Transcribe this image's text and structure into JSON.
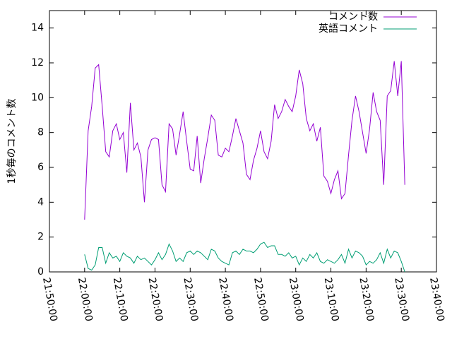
{
  "chart_data": {
    "type": "line",
    "ylabel": "1秒毎のコメント数",
    "x": [
      "22:00:00",
      "22:01:00",
      "22:02:00",
      "22:03:00",
      "22:04:00",
      "22:05:00",
      "22:06:00",
      "22:07:00",
      "22:08:00",
      "22:09:00",
      "22:10:00",
      "22:11:00",
      "22:12:00",
      "22:13:00",
      "22:14:00",
      "22:15:00",
      "22:16:00",
      "22:17:00",
      "22:18:00",
      "22:19:00",
      "22:20:00",
      "22:21:00",
      "22:22:00",
      "22:23:00",
      "22:24:00",
      "22:25:00",
      "22:26:00",
      "22:27:00",
      "22:28:00",
      "22:29:00",
      "22:30:00",
      "22:31:00",
      "22:32:00",
      "22:33:00",
      "22:34:00",
      "22:35:00",
      "22:36:00",
      "22:37:00",
      "22:38:00",
      "22:39:00",
      "22:40:00",
      "22:41:00",
      "22:42:00",
      "22:43:00",
      "22:44:00",
      "22:45:00",
      "22:46:00",
      "22:47:00",
      "22:48:00",
      "22:49:00",
      "22:50:00",
      "22:51:00",
      "22:52:00",
      "22:53:00",
      "22:54:00",
      "22:55:00",
      "22:56:00",
      "22:57:00",
      "22:58:00",
      "22:59:00",
      "23:00:00",
      "23:01:00",
      "23:02:00",
      "23:03:00",
      "23:04:00",
      "23:05:00",
      "23:06:00",
      "23:07:00",
      "23:08:00",
      "23:09:00",
      "23:10:00",
      "23:11:00",
      "23:12:00",
      "23:13:00",
      "23:14:00",
      "23:15:00",
      "23:16:00",
      "23:17:00",
      "23:18:00",
      "23:19:00",
      "23:20:00",
      "23:21:00",
      "23:22:00",
      "23:23:00",
      "23:24:00",
      "23:25:00",
      "23:26:00",
      "23:27:00",
      "23:28:00",
      "23:29:00",
      "23:30:00",
      "23:31:00"
    ],
    "series": [
      {
        "name": "コメント数",
        "color": "#9400d3",
        "values": [
          3.0,
          8.1,
          9.5,
          11.7,
          11.9,
          9.5,
          6.9,
          6.6,
          8.1,
          8.5,
          7.6,
          8.0,
          5.7,
          9.7,
          7.0,
          7.4,
          6.6,
          4.0,
          7.0,
          7.6,
          7.7,
          7.6,
          5.0,
          4.6,
          8.5,
          8.2,
          6.7,
          7.9,
          9.2,
          7.5,
          5.9,
          5.8,
          7.8,
          5.1,
          6.5,
          7.7,
          9.0,
          8.7,
          6.7,
          6.6,
          7.1,
          6.9,
          7.8,
          8.8,
          8.1,
          7.4,
          5.6,
          5.3,
          6.4,
          7.1,
          8.1,
          6.9,
          6.5,
          7.5,
          9.6,
          8.8,
          9.2,
          9.9,
          9.5,
          9.2,
          10.1,
          11.6,
          10.8,
          8.8,
          8.1,
          8.5,
          7.5,
          8.3,
          5.5,
          5.2,
          4.5,
          5.3,
          5.8,
          4.2,
          4.5,
          6.7,
          8.7,
          10.1,
          9.2,
          8.0,
          6.8,
          8.2,
          10.3,
          9.2,
          8.7,
          5.0,
          10.1,
          10.4,
          12.1,
          10.1,
          12.1,
          5.0
        ]
      },
      {
        "name": "英語コメント",
        "color": "#009e73",
        "values": [
          1.0,
          0.2,
          0.1,
          0.4,
          1.4,
          1.4,
          0.5,
          1.1,
          0.8,
          0.9,
          0.6,
          1.1,
          0.9,
          0.8,
          0.5,
          0.9,
          0.7,
          0.8,
          0.6,
          0.4,
          0.7,
          1.1,
          0.7,
          1.0,
          1.6,
          1.2,
          0.6,
          0.8,
          0.6,
          1.1,
          1.2,
          1.0,
          1.2,
          1.1,
          0.9,
          0.7,
          1.3,
          1.2,
          0.8,
          0.6,
          0.5,
          0.4,
          1.1,
          1.2,
          1.0,
          1.3,
          1.2,
          1.2,
          1.1,
          1.3,
          1.6,
          1.7,
          1.4,
          1.5,
          1.5,
          1.0,
          1.0,
          0.9,
          1.1,
          0.8,
          0.9,
          0.4,
          0.8,
          0.6,
          1.0,
          0.8,
          1.1,
          0.6,
          0.5,
          0.7,
          0.6,
          0.5,
          0.7,
          1.0,
          0.5,
          1.3,
          0.8,
          1.2,
          1.1,
          0.9,
          0.4,
          0.6,
          0.5,
          0.7,
          1.1,
          0.5,
          1.3,
          0.8,
          1.2,
          1.1,
          0.6,
          0.0
        ]
      }
    ],
    "xlim": [
      "21:50:00",
      "23:40:00"
    ],
    "xticks": [
      "21:50:00",
      "22:00:00",
      "22:10:00",
      "22:20:00",
      "22:30:00",
      "22:40:00",
      "22:50:00",
      "23:00:00",
      "23:10:00",
      "23:20:00",
      "23:30:00",
      "23:40:00"
    ],
    "ylim": [
      0,
      15
    ],
    "yticks": [
      0,
      2,
      4,
      6,
      8,
      10,
      12,
      14
    ],
    "legend": "top-right"
  }
}
